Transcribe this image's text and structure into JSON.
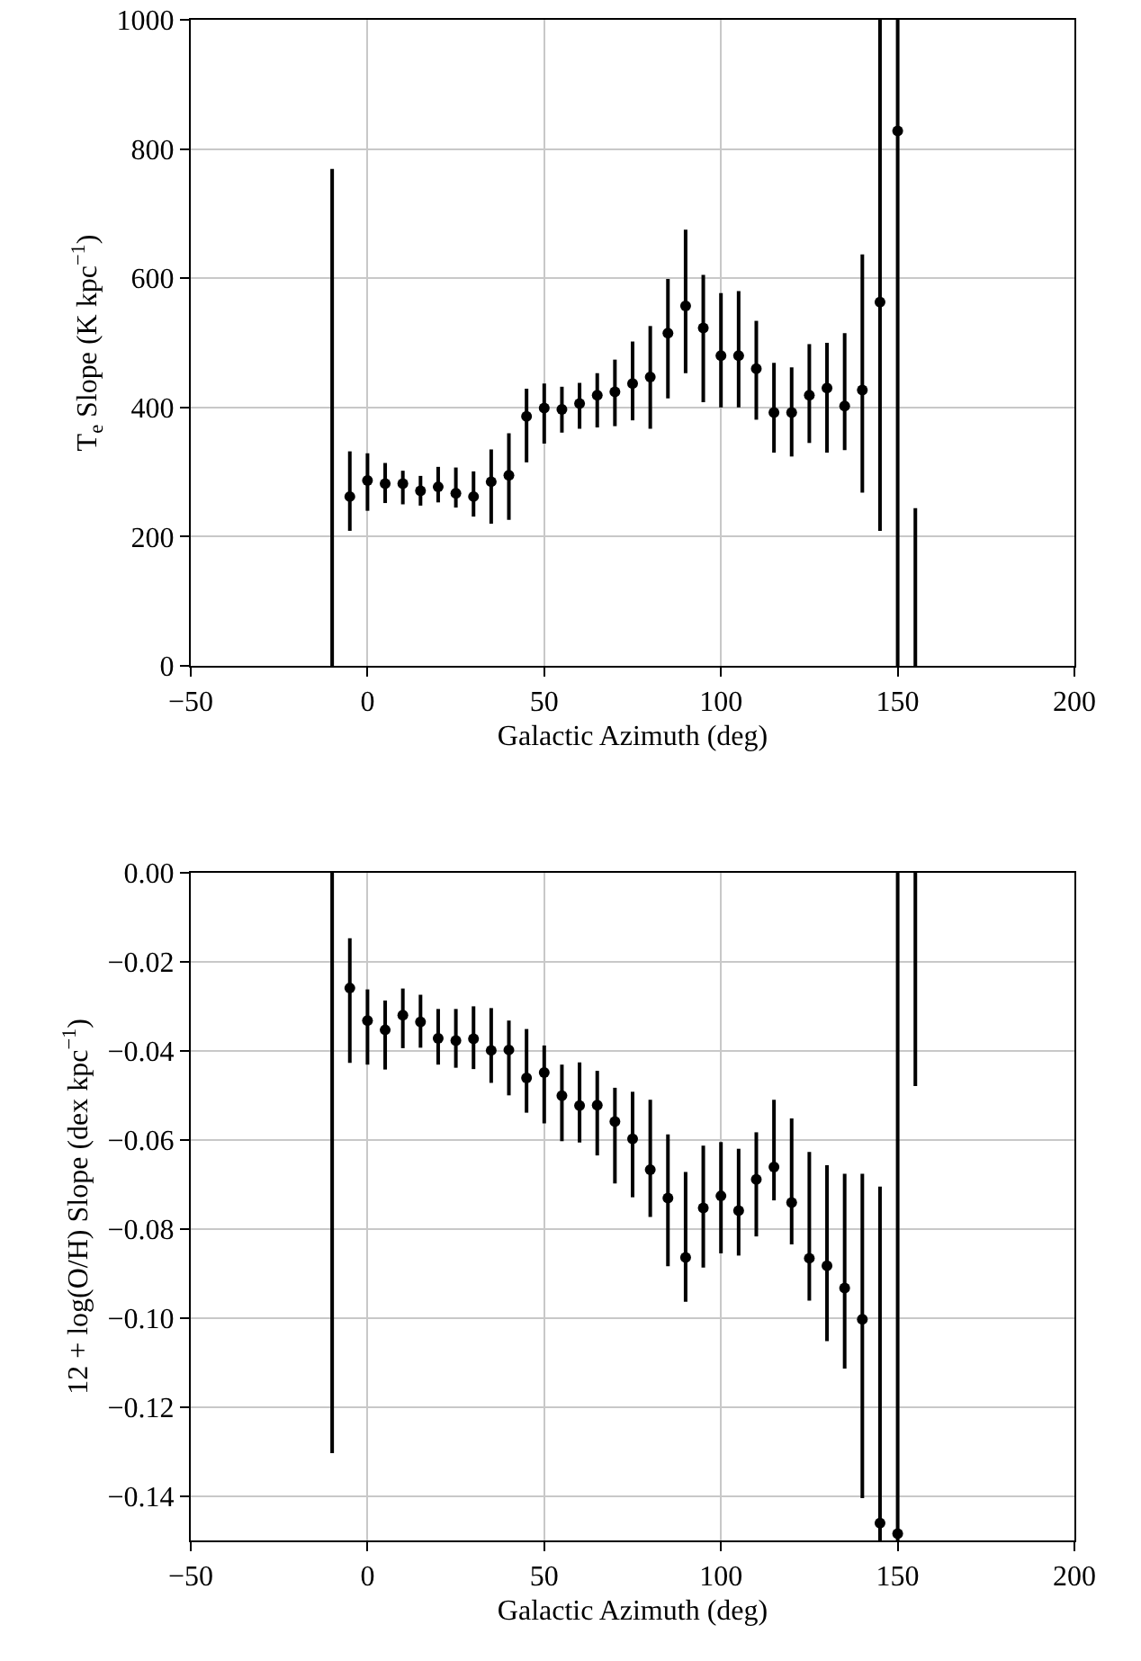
{
  "chart_data": [
    {
      "type": "scatter",
      "xlabel": "Galactic Azimuth (deg)",
      "ylabel": "T$_{e}$ Slope (K kpc$^{−1}$)",
      "grid": true,
      "xlim": [
        -50,
        200
      ],
      "xticks": [
        {
          "value": -50,
          "label": "−50"
        },
        0,
        50,
        100,
        150,
        200
      ],
      "ylim": [
        0,
        1000
      ],
      "yticks": [
        0,
        200,
        400,
        600,
        800,
        1000
      ],
      "series": [
        {
          "marker": "circle",
          "color": "#000000",
          "x": [
            -5,
            0,
            5,
            10,
            15,
            20,
            25,
            30,
            35,
            40,
            45,
            50,
            55,
            60,
            65,
            70,
            75,
            80,
            85,
            90,
            95,
            100,
            105,
            110,
            115,
            120,
            125,
            130,
            135,
            140,
            145,
            150
          ],
          "values": [
            262,
            287,
            282,
            282,
            271,
            277,
            267,
            262,
            285,
            295,
            386,
            399,
            397,
            406,
            419,
            424,
            437,
            447,
            515,
            557,
            523,
            480,
            480,
            460,
            392,
            392,
            419,
            430,
            402,
            427,
            563,
            828
          ],
          "errors": [
            [
              209,
              332
            ],
            [
              240,
              329
            ],
            [
              252,
              314
            ],
            [
              250,
              302
            ],
            [
              248,
              294
            ],
            [
              253,
              308
            ],
            [
              245,
              307
            ],
            [
              231,
              301
            ],
            [
              220,
              335
            ],
            [
              226,
              360
            ],
            [
              315,
              429
            ],
            [
              344,
              437
            ],
            [
              361,
              432
            ],
            [
              367,
              438
            ],
            [
              369,
              453
            ],
            [
              371,
              474
            ],
            [
              380,
              502
            ],
            [
              367,
              526
            ],
            [
              414,
              599
            ],
            [
              453,
              675
            ],
            [
              408,
              605
            ],
            [
              400,
              577
            ],
            [
              400,
              580
            ],
            [
              381,
              534
            ],
            [
              330,
              469
            ],
            [
              324,
              462
            ],
            [
              345,
              498
            ],
            [
              330,
              500
            ],
            [
              334,
              515
            ],
            [
              268,
              637
            ],
            null,
            null
          ]
        },
        {
          "type": "line",
          "color": "#000000",
          "x": [
            -10,
            -10
          ],
          "values": [
            0,
            769
          ]
        },
        {
          "type": "line",
          "color": "#000000",
          "x": [
            145,
            145
          ],
          "values": [
            209,
            1000
          ]
        },
        {
          "type": "line",
          "color": "#000000",
          "x": [
            150,
            150
          ],
          "values": [
            0,
            1000
          ]
        },
        {
          "type": "line",
          "color": "#000000",
          "x": [
            155,
            155
          ],
          "values": [
            0,
            244
          ]
        }
      ]
    },
    {
      "type": "scatter",
      "xlabel": "Galactic Azimuth (deg)",
      "ylabel": "12 + log(O/H) Slope (dex kpc$^{−1}$)",
      "grid": true,
      "xlim": [
        -50,
        200
      ],
      "xticks": [
        {
          "value": -50,
          "label": "−50"
        },
        0,
        50,
        100,
        150,
        200
      ],
      "ylim": [
        -0.15,
        0
      ],
      "yticks": [
        {
          "value": -0.14,
          "label": "−0.14"
        },
        {
          "value": -0.12,
          "label": "−0.12"
        },
        {
          "value": -0.1,
          "label": "−0.10"
        },
        {
          "value": -0.08,
          "label": "−0.08"
        },
        {
          "value": -0.06,
          "label": "−0.06"
        },
        {
          "value": -0.04,
          "label": "−0.04"
        },
        {
          "value": -0.02,
          "label": "−0.02"
        },
        {
          "value": 0,
          "label": "0.00"
        }
      ],
      "series": [
        {
          "marker": "circle",
          "color": "#000000",
          "x": [
            -5,
            0,
            5,
            10,
            15,
            20,
            25,
            30,
            35,
            40,
            45,
            50,
            55,
            60,
            65,
            70,
            75,
            80,
            85,
            90,
            95,
            100,
            105,
            110,
            115,
            120,
            125,
            130,
            135,
            140,
            145,
            150
          ],
          "values": [
            -0.0259,
            -0.0332,
            -0.0353,
            -0.032,
            -0.0335,
            -0.0372,
            -0.0377,
            -0.0373,
            -0.0399,
            -0.0398,
            -0.0461,
            -0.0449,
            -0.0501,
            -0.0523,
            -0.0522,
            -0.0559,
            -0.0598,
            -0.0667,
            -0.0731,
            -0.0864,
            -0.0753,
            -0.0726,
            -0.0759,
            -0.0689,
            -0.0661,
            -0.0741,
            -0.0866,
            -0.0883,
            -0.0933,
            -0.1003,
            -0.1461,
            -0.1485
          ],
          "errors": [
            [
              -0.0427,
              -0.0147
            ],
            [
              -0.0431,
              -0.0262
            ],
            [
              -0.0442,
              -0.0287
            ],
            [
              -0.0394,
              -0.026
            ],
            [
              -0.0393,
              -0.0274
            ],
            [
              -0.0431,
              -0.0306
            ],
            [
              -0.0438,
              -0.0306
            ],
            [
              -0.0441,
              -0.03
            ],
            [
              -0.0472,
              -0.0304
            ],
            [
              -0.05,
              -0.0332
            ],
            [
              -0.0539,
              -0.0351
            ],
            [
              -0.0563,
              -0.0388
            ],
            [
              -0.0603,
              -0.0431
            ],
            [
              -0.0606,
              -0.0426
            ],
            [
              -0.0635,
              -0.0445
            ],
            [
              -0.0698,
              -0.0483
            ],
            [
              -0.0729,
              -0.0492
            ],
            [
              -0.0773,
              -0.051
            ],
            [
              -0.0884,
              -0.0588
            ],
            [
              -0.0964,
              -0.0672
            ],
            [
              -0.0887,
              -0.0613
            ],
            [
              -0.0855,
              -0.0605
            ],
            [
              -0.086,
              -0.062
            ],
            [
              -0.0817,
              -0.0583
            ],
            [
              -0.0736,
              -0.051
            ],
            [
              -0.0835,
              -0.0552
            ],
            [
              -0.0961,
              -0.0627
            ],
            [
              -0.1052,
              -0.0657
            ],
            [
              -0.1114,
              -0.0676
            ],
            [
              -0.1405,
              -0.0676
            ],
            null,
            null
          ]
        },
        {
          "type": "line",
          "color": "#000000",
          "x": [
            -10,
            -10
          ],
          "values": [
            0,
            -0.1304
          ]
        },
        {
          "type": "line",
          "color": "#000000",
          "x": [
            145,
            145
          ],
          "values": [
            -0.0705,
            -0.15
          ]
        },
        {
          "type": "line",
          "color": "#000000",
          "x": [
            150,
            150
          ],
          "values": [
            0,
            -0.15
          ]
        },
        {
          "type": "line",
          "color": "#000000",
          "x": [
            155,
            155
          ],
          "values": [
            0,
            -0.0479
          ]
        }
      ]
    }
  ]
}
